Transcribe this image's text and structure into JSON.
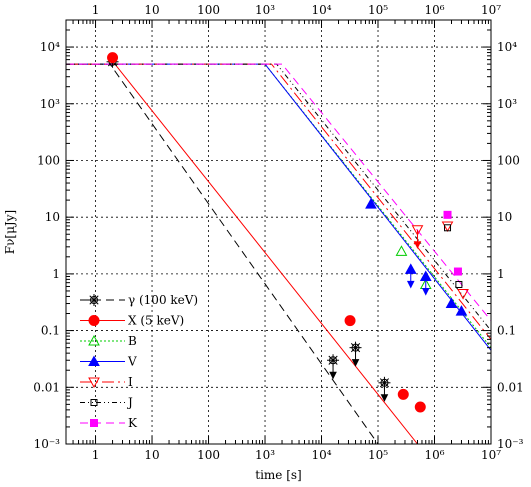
{
  "chart_data": {
    "type": "scatter",
    "title": "",
    "xlabel": "time [s]",
    "ylabel": "Fν[μJy]",
    "x_scale": "log",
    "y_scale": "log",
    "xlim": [
      0.3,
      10000000
    ],
    "ylim": [
      0.001,
      30000
    ],
    "grid": true,
    "legend_position": "bottom-left",
    "x_ticks": [
      {
        "v": 1,
        "label": "1"
      },
      {
        "v": 10,
        "label": "10"
      },
      {
        "v": 100,
        "label": "100"
      },
      {
        "v": 1000,
        "label": "10³"
      },
      {
        "v": 10000,
        "label": "10⁴"
      },
      {
        "v": 100000,
        "label": "10⁵"
      },
      {
        "v": 1000000,
        "label": "10⁶"
      },
      {
        "v": 10000000,
        "label": "10⁷"
      }
    ],
    "y_ticks": [
      {
        "v": 0.001,
        "label": "10⁻³"
      },
      {
        "v": 0.01,
        "label": "0.01"
      },
      {
        "v": 0.1,
        "label": "0.1"
      },
      {
        "v": 1,
        "label": "1"
      },
      {
        "v": 10,
        "label": "10"
      },
      {
        "v": 100,
        "label": "100"
      },
      {
        "v": 1000,
        "label": "10³"
      },
      {
        "v": 10000,
        "label": "10⁴"
      }
    ],
    "series": [
      {
        "name": "γ (100 keV)",
        "color": "#000000",
        "marker": "star",
        "dash": "8 5",
        "model": [
          [
            0.3,
            5000
          ],
          [
            1.8,
            5000
          ],
          [
            100000,
            0.001
          ]
        ],
        "points": [
          [
            2,
            5500,
            false
          ],
          [
            16000,
            0.03,
            true
          ],
          [
            40000,
            0.05,
            true
          ],
          [
            130000,
            0.012,
            true
          ]
        ]
      },
      {
        "name": "X (5 keV)",
        "color": "#ff0000",
        "marker": "circle",
        "dash": "",
        "model": [
          [
            0.3,
            5000
          ],
          [
            2.2,
            5000
          ],
          [
            500000,
            0.001
          ]
        ],
        "points": [
          [
            2,
            6500,
            false
          ],
          [
            32000,
            0.15,
            false
          ],
          [
            280000,
            0.0075,
            false
          ],
          [
            560000,
            0.0045,
            false
          ]
        ]
      },
      {
        "name": "B",
        "color": "#00cc00",
        "marker": "triangle-up-open",
        "dash": "2 2",
        "model": [
          [
            0.3,
            5000
          ],
          [
            1000,
            5000
          ],
          [
            10000000,
            0.05
          ]
        ],
        "points": [
          [
            260000,
            2.5,
            false
          ],
          [
            700000,
            0.65,
            false
          ]
        ]
      },
      {
        "name": "V",
        "color": "#0000ff",
        "marker": "triangle-up",
        "dash": "",
        "model": [
          [
            0.3,
            5000
          ],
          [
            1000,
            5000
          ],
          [
            10000000,
            0.045
          ]
        ],
        "points": [
          [
            75000,
            17,
            false
          ],
          [
            380000,
            1.2,
            true
          ],
          [
            700000,
            0.9,
            true
          ],
          [
            2000000,
            0.3,
            false
          ],
          [
            3000000,
            0.22,
            false
          ]
        ]
      },
      {
        "name": "I",
        "color": "#ff0000",
        "marker": "triangle-down-open",
        "dash": "12 4 2 4",
        "model": [
          [
            0.3,
            5000
          ],
          [
            1300,
            5000
          ],
          [
            10000000,
            0.07
          ]
        ],
        "points": [
          [
            500000,
            6,
            true
          ],
          [
            1700000,
            7,
            false
          ],
          [
            3200000,
            0.45,
            false
          ]
        ]
      },
      {
        "name": "J",
        "color": "#000000",
        "marker": "square-open",
        "dash": "5 3 1 3 1 3",
        "model": [
          [
            0.3,
            5000
          ],
          [
            1600,
            5000
          ],
          [
            10000000,
            0.1
          ]
        ],
        "points": [
          [
            1700000,
            6.5,
            false
          ],
          [
            2700000,
            0.65,
            false
          ]
        ]
      },
      {
        "name": "K",
        "color": "#ff00ff",
        "marker": "square",
        "dash": "8 5",
        "model": [
          [
            0.3,
            5000
          ],
          [
            2000,
            5000
          ],
          [
            10000000,
            0.15
          ]
        ],
        "points": [
          [
            1700000,
            11,
            false
          ],
          [
            2600000,
            1.1,
            false
          ]
        ]
      }
    ]
  }
}
